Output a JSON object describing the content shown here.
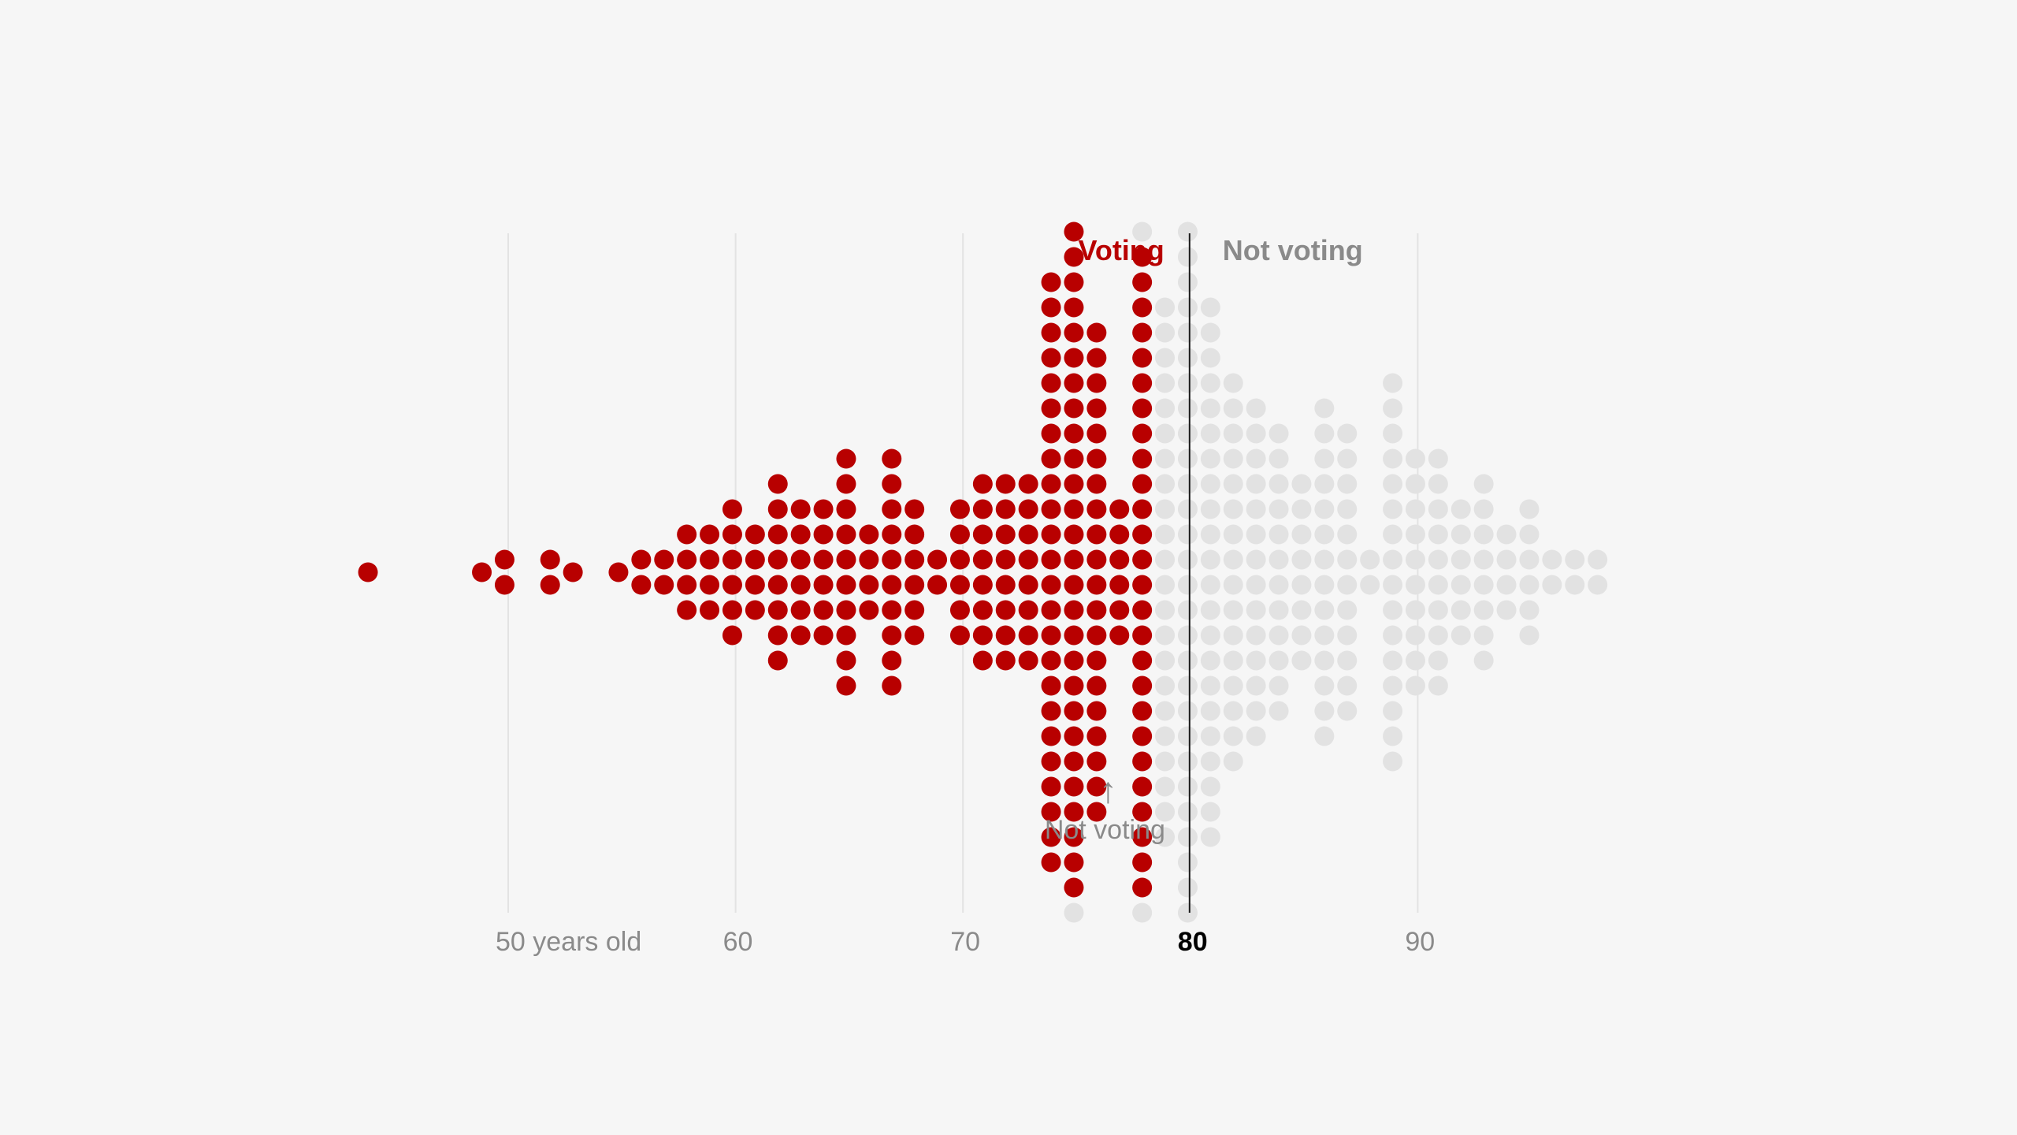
{
  "chart_data": {
    "type": "beeswarm",
    "title": "",
    "xlabel": "",
    "ylabel": "",
    "xlim": [
      44,
      99
    ],
    "threshold": 80,
    "x_ticks": [
      {
        "value": 50,
        "label": "50 years old"
      },
      {
        "value": 60,
        "label": "60"
      },
      {
        "value": 70,
        "label": "70"
      },
      {
        "value": 80,
        "label": "80"
      },
      {
        "value": 90,
        "label": "90"
      }
    ],
    "group_labels": {
      "voting": "Voting",
      "not_voting": "Not voting"
    },
    "annotation": {
      "text": "Not voting",
      "arrow": "↑",
      "at_age": 76
    },
    "colors": {
      "voting": "#b80000",
      "not_voting": "#e2e2e2",
      "gridline": "#e3e3e3",
      "threshold_line": "#1a1a1a",
      "axis_text": "#8a8a8a",
      "threshold_text": "#000000"
    },
    "series": [
      {
        "name": "Voting",
        "ages_counts": [
          [
            44,
            1
          ],
          [
            49,
            1
          ],
          [
            50,
            2
          ],
          [
            52,
            2
          ],
          [
            53,
            1
          ],
          [
            55,
            1
          ],
          [
            56,
            2
          ],
          [
            57,
            2
          ],
          [
            58,
            4
          ],
          [
            59,
            4
          ],
          [
            60,
            6
          ],
          [
            61,
            4
          ],
          [
            62,
            8
          ],
          [
            63,
            6
          ],
          [
            64,
            6
          ],
          [
            65,
            10
          ],
          [
            66,
            4
          ],
          [
            67,
            10
          ],
          [
            68,
            6
          ],
          [
            69,
            2
          ],
          [
            70,
            6
          ],
          [
            71,
            8
          ],
          [
            72,
            8
          ],
          [
            73,
            8
          ],
          [
            74,
            24
          ],
          [
            75,
            27
          ],
          [
            76,
            20
          ],
          [
            77,
            6
          ],
          [
            78,
            26
          ]
        ]
      },
      {
        "name": "Not voting",
        "ages_counts": [
          [
            75,
            1
          ],
          [
            78,
            2
          ],
          [
            79,
            22
          ],
          [
            80,
            28
          ],
          [
            81,
            22
          ],
          [
            82,
            16
          ],
          [
            83,
            14
          ],
          [
            84,
            12
          ],
          [
            85,
            8
          ],
          [
            86,
            14
          ],
          [
            87,
            12
          ],
          [
            88,
            2
          ],
          [
            89,
            16
          ],
          [
            90,
            10
          ],
          [
            91,
            10
          ],
          [
            92,
            6
          ],
          [
            93,
            8
          ],
          [
            94,
            4
          ],
          [
            95,
            6
          ],
          [
            96,
            2
          ],
          [
            97,
            2
          ],
          [
            98,
            2
          ]
        ]
      }
    ]
  }
}
